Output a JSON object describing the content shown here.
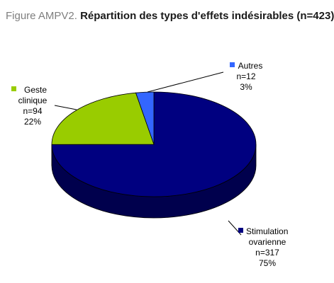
{
  "figure": {
    "prefix": "Figure AMPV2.",
    "title": "Répartition des types d'effets indésirables (n=423)"
  },
  "chart_data": {
    "type": "pie",
    "style": "3d",
    "title": "Répartition des types d'effets indésirables (n=423)",
    "total": 423,
    "slices": [
      {
        "label_lines": [
          "Stimulation",
          "ovarienne"
        ],
        "n_text": "n=317",
        "value": 317,
        "percent_text": "75%",
        "color": "#000080"
      },
      {
        "label_lines": [
          "Geste",
          "clinique"
        ],
        "n_text": "n=94",
        "value": 94,
        "percent_text": "22%",
        "color": "#99cc00"
      },
      {
        "label_lines": [
          "Autres"
        ],
        "n_text": "n=12",
        "value": 12,
        "percent_text": "3%",
        "color": "#3366ff"
      }
    ]
  }
}
